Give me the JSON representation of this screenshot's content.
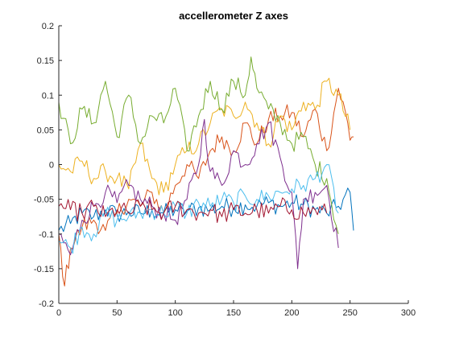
{
  "chart_data": {
    "type": "line",
    "title": "accellerometer Z axes",
    "xlabel": "",
    "ylabel": "",
    "xlim": [
      0,
      300
    ],
    "ylim": [
      -0.2,
      0.2
    ],
    "xticks": [
      0,
      50,
      100,
      150,
      200,
      250,
      300
    ],
    "yticks": [
      -0.2,
      -0.15,
      -0.1,
      -0.05,
      0,
      0.05,
      0.1,
      0.15,
      0.2
    ],
    "xtick_labels": [
      "0",
      "50",
      "100",
      "150",
      "200",
      "250",
      "300"
    ],
    "ytick_labels": [
      "-0.2",
      "-0.15",
      "-0.1",
      "-0.05",
      "0",
      "0.05",
      "0.1",
      "0.15",
      "0.2"
    ],
    "grid": false,
    "legend": "none",
    "series": [
      {
        "color": "#0072BD",
        "x": [
          0,
          10,
          20,
          30,
          40,
          50,
          60,
          70,
          80,
          90,
          100,
          110,
          120,
          130,
          140,
          150,
          160,
          170,
          180,
          190,
          200,
          210,
          220,
          230,
          240,
          250,
          253
        ],
        "y": [
          -0.095,
          -0.085,
          -0.07,
          -0.075,
          -0.065,
          -0.072,
          -0.068,
          -0.07,
          -0.066,
          -0.07,
          -0.065,
          -0.067,
          -0.062,
          -0.065,
          -0.06,
          -0.062,
          -0.058,
          -0.06,
          -0.055,
          -0.06,
          -0.055,
          -0.058,
          -0.065,
          -0.07,
          -0.06,
          -0.04,
          -0.095
        ]
      },
      {
        "color": "#D95319",
        "x": [
          0,
          5,
          10,
          20,
          30,
          40,
          50,
          60,
          70,
          80,
          90,
          100,
          110,
          120,
          130,
          140,
          150,
          160,
          170,
          180,
          190,
          200,
          210,
          220,
          230,
          240,
          248,
          250,
          253
        ],
        "y": [
          -0.1,
          -0.175,
          -0.12,
          -0.09,
          -0.08,
          -0.095,
          -0.07,
          -0.05,
          -0.06,
          -0.04,
          -0.07,
          -0.03,
          0.0,
          -0.02,
          0.02,
          0.04,
          0.02,
          0.06,
          0.03,
          0.065,
          0.07,
          0.075,
          0.04,
          0.08,
          0.02,
          0.11,
          0.06,
          0.035,
          0.04
        ]
      },
      {
        "color": "#EDB120",
        "x": [
          0,
          10,
          20,
          30,
          40,
          50,
          60,
          70,
          80,
          90,
          100,
          110,
          120,
          130,
          140,
          150,
          160,
          170,
          180,
          190,
          200,
          210,
          220,
          230,
          240,
          250
        ],
        "y": [
          0.0,
          -0.01,
          0.005,
          -0.02,
          -0.01,
          -0.02,
          -0.035,
          0.03,
          -0.02,
          -0.04,
          0.0,
          0.02,
          0.03,
          0.06,
          0.08,
          0.07,
          0.09,
          0.06,
          0.03,
          0.07,
          0.05,
          0.09,
          0.08,
          0.12,
          0.1,
          0.05
        ]
      },
      {
        "color": "#7E2F8E",
        "x": [
          0,
          10,
          20,
          30,
          40,
          50,
          60,
          70,
          80,
          90,
          100,
          110,
          120,
          125,
          130,
          140,
          150,
          160,
          170,
          180,
          190,
          200,
          205,
          210,
          220,
          230,
          240
        ],
        "y": [
          -0.1,
          -0.13,
          -0.08,
          -0.06,
          -0.04,
          -0.055,
          -0.03,
          -0.05,
          -0.06,
          -0.07,
          -0.08,
          -0.05,
          0.0,
          0.065,
          -0.01,
          -0.03,
          0.02,
          0.0,
          0.03,
          0.06,
          0.01,
          -0.04,
          -0.15,
          -0.05,
          -0.04,
          -0.03,
          -0.12
        ]
      },
      {
        "color": "#77AC30",
        "x": [
          0,
          10,
          20,
          30,
          40,
          50,
          60,
          70,
          80,
          90,
          100,
          110,
          120,
          130,
          140,
          150,
          160,
          165,
          170,
          180,
          190,
          200,
          210,
          220,
          230,
          240
        ],
        "y": [
          0.09,
          0.03,
          0.08,
          0.06,
          0.12,
          0.04,
          0.1,
          0.03,
          0.07,
          0.06,
          0.11,
          0.02,
          0.07,
          0.12,
          0.08,
          0.12,
          0.1,
          0.155,
          0.11,
          0.08,
          0.06,
          0.03,
          0.04,
          0.0,
          -0.02,
          -0.1
        ]
      },
      {
        "color": "#4DBEEE",
        "x": [
          0,
          10,
          20,
          30,
          40,
          50,
          60,
          70,
          80,
          90,
          100,
          110,
          120,
          130,
          140,
          150,
          160,
          170,
          180,
          190,
          200,
          210,
          220,
          230,
          240
        ],
        "y": [
          -0.11,
          -0.12,
          -0.09,
          -0.1,
          -0.07,
          -0.08,
          -0.075,
          -0.07,
          -0.065,
          -0.07,
          -0.06,
          -0.07,
          -0.055,
          -0.06,
          -0.05,
          -0.055,
          -0.045,
          -0.05,
          -0.045,
          -0.04,
          -0.035,
          -0.03,
          -0.02,
          0.0,
          -0.07
        ]
      },
      {
        "color": "#A2142F",
        "x": [
          0,
          10,
          20,
          30,
          40,
          50,
          60,
          70,
          80,
          90,
          100,
          110,
          120,
          130,
          140,
          150,
          160,
          170,
          180,
          190,
          200,
          210,
          220,
          230
        ],
        "y": [
          -0.06,
          -0.065,
          -0.07,
          -0.06,
          -0.075,
          -0.065,
          -0.07,
          -0.06,
          -0.065,
          -0.07,
          -0.06,
          -0.065,
          -0.07,
          -0.065,
          -0.075,
          -0.065,
          -0.07,
          -0.065,
          -0.07,
          -0.06,
          -0.065,
          -0.07,
          -0.065,
          -0.07
        ]
      }
    ]
  }
}
